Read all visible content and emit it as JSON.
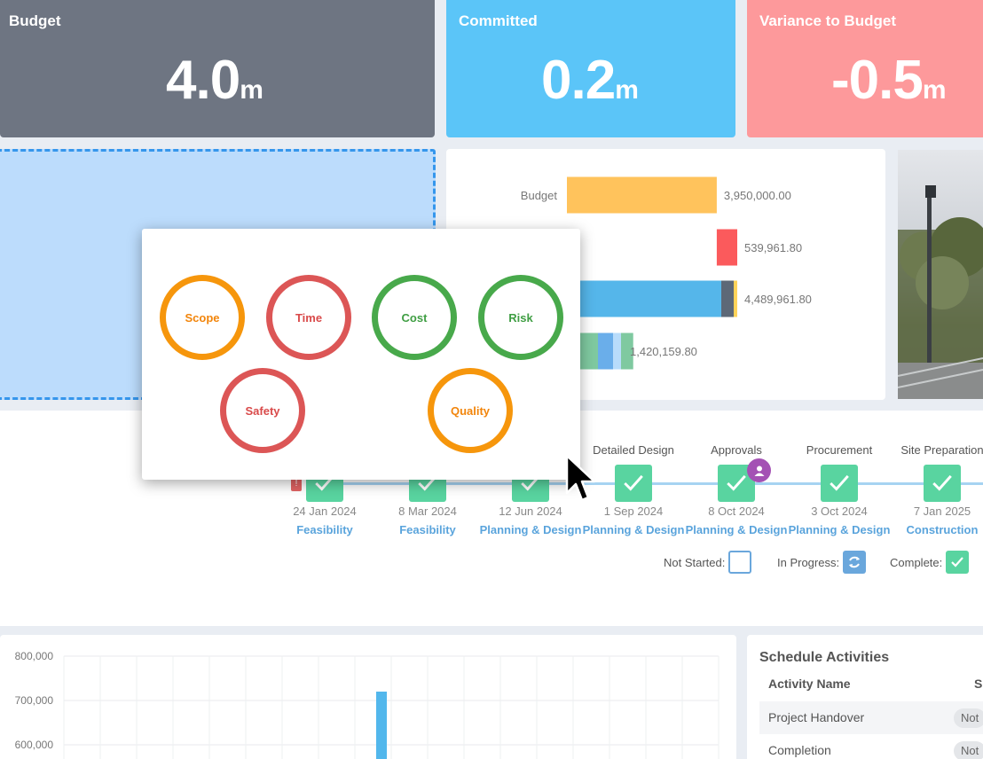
{
  "kpis": {
    "budget": {
      "title": "Budget",
      "value": "4.0",
      "unit": "m",
      "color": "#6e7582"
    },
    "committed": {
      "title": "Committed",
      "value": "0.2",
      "unit": "m",
      "color": "#5bc5f8"
    },
    "variance": {
      "title": "Variance to Budget",
      "value": "-0.5",
      "unit": "m",
      "color": "#fd999b"
    }
  },
  "chart_data": {
    "type": "bar",
    "orientation": "horizontal",
    "categories": [
      "Budget",
      "",
      "",
      ""
    ],
    "values": [
      3950000.0,
      539961.8,
      4489961.8,
      1420159.8
    ],
    "value_labels": [
      "3,950,000.00",
      "539,961.80",
      "4,489,961.80",
      "1,420,159.80"
    ],
    "colors": [
      "#ffc35c",
      "#fb5a5c",
      "#55b6ea",
      "#7fc9a0"
    ]
  },
  "bar_chart_rows": [
    {
      "label": "Budget",
      "value_label": "3,950,000.00"
    },
    {
      "label": "",
      "value_label": "539,961.80"
    },
    {
      "label": "",
      "value_label": "4,489,961.80"
    },
    {
      "label": "",
      "value_label": "1,420,159.80"
    }
  ],
  "popup": {
    "rings": [
      {
        "label": "Scope",
        "color": "orange"
      },
      {
        "label": "Time",
        "color": "red"
      },
      {
        "label": "Cost",
        "color": "green"
      },
      {
        "label": "Risk",
        "color": "green"
      },
      {
        "label": "Safety",
        "color": "red"
      },
      {
        "label": "Quality",
        "color": "orange"
      }
    ]
  },
  "timeline": {
    "steps": [
      {
        "name": "",
        "date": "24 Jan 2024",
        "phase": "Feasibility"
      },
      {
        "name": "",
        "date": "8 Mar 2024",
        "phase": "Feasibility"
      },
      {
        "name": "",
        "date": "12 Jun 2024",
        "phase": "Planning & Design"
      },
      {
        "name": "Detailed Design",
        "date": "1 Sep 2024",
        "phase": "Planning & Design"
      },
      {
        "name": "Approvals",
        "date": "8 Oct 2024",
        "phase": "Planning & Design"
      },
      {
        "name": "Procurement",
        "date": "3 Oct 2024",
        "phase": "Planning & Design"
      },
      {
        "name": "Site Preparation",
        "date": "7 Jan 2025",
        "phase": "Construction"
      }
    ],
    "legend": {
      "not_started": "Not Started:",
      "in_progress": "In Progress:",
      "complete": "Complete:"
    }
  },
  "line_chart": {
    "y_ticks": [
      "800,000",
      "700,000",
      "600,000"
    ],
    "bar_value": 720000
  },
  "schedule": {
    "title": "Schedule Activities",
    "col_name": "Activity Name",
    "col_status": "S",
    "rows": [
      {
        "name": "Project Handover",
        "status": "Not"
      },
      {
        "name": "Completion",
        "status": "Not"
      }
    ]
  }
}
